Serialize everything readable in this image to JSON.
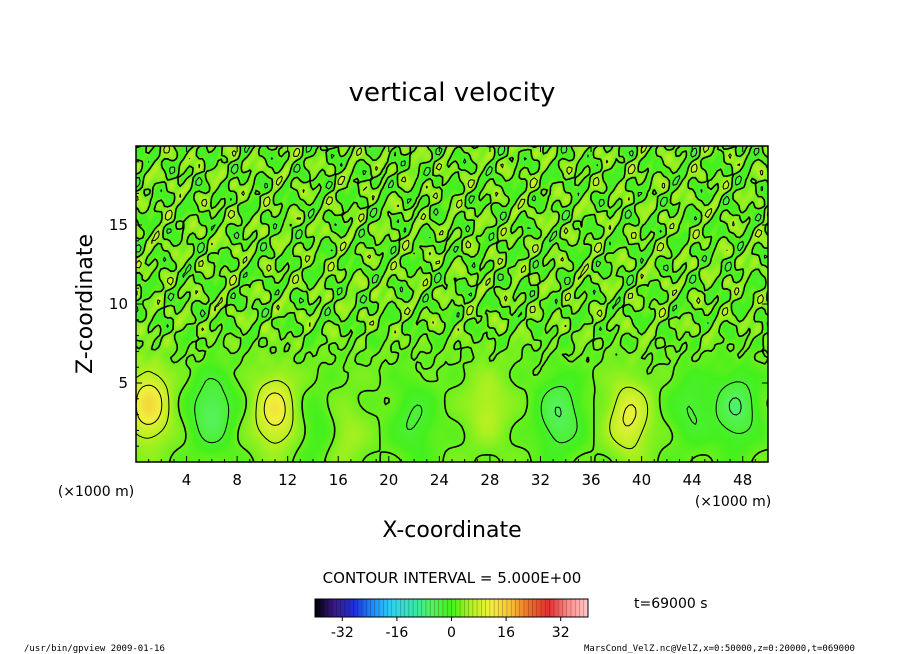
{
  "chart_data": {
    "type": "heatmap",
    "title": "vertical velocity",
    "xlabel": "X-coordinate",
    "ylabel": "Z-coordinate",
    "x_unit": "(×1000 m)",
    "y_unit": "(×1000 m)",
    "x_ticks": [
      4,
      8,
      12,
      16,
      20,
      24,
      28,
      32,
      36,
      40,
      44,
      48
    ],
    "y_ticks": [
      5,
      10,
      15
    ],
    "xlim": [
      0,
      50
    ],
    "ylim": [
      0,
      20
    ],
    "contour_interval": "CONTOUR INTERVAL = 5.000E+00",
    "colorbar": {
      "ticks": [
        -32,
        -16,
        0,
        16,
        32
      ],
      "range": [
        -40,
        40
      ],
      "colors": [
        "#000000",
        "#3a1a8a",
        "#1c2fd6",
        "#1e90ff",
        "#33d3f0",
        "#33e6b0",
        "#55f25a",
        "#44f01c",
        "#b4f020",
        "#f0f03c",
        "#f7c33b",
        "#f06a2a",
        "#e03030",
        "#ff8c8c",
        "#ffc8c8"
      ]
    },
    "features": [
      {
        "x": 1.0,
        "z": 3.6,
        "w": 3.2,
        "sign": "positive"
      },
      {
        "x": 6.0,
        "z": 3.2,
        "w": -2.2,
        "sign": "negative"
      },
      {
        "x": 11.0,
        "z": 3.2,
        "w": 2.8,
        "sign": "positive"
      },
      {
        "x": 14.5,
        "z": 2.0,
        "w": -0.8,
        "sign": "negative"
      },
      {
        "x": 16.5,
        "z": 1.6,
        "w": 0.9,
        "sign": "positive"
      },
      {
        "x": 22.0,
        "z": 2.6,
        "w": -1.2,
        "sign": "negative"
      },
      {
        "x": 27.8,
        "z": 3.5,
        "w": 1.2,
        "sign": "positive"
      },
      {
        "x": 33.5,
        "z": 3.0,
        "w": -2.2,
        "sign": "negative"
      },
      {
        "x": 39.0,
        "z": 2.8,
        "w": 2.4,
        "sign": "positive"
      },
      {
        "x": 44.0,
        "z": 3.4,
        "w": -1.2,
        "sign": "negative"
      },
      {
        "x": 47.5,
        "z": 3.4,
        "w": -2.2,
        "sign": "negative"
      }
    ],
    "time_label": "t=69000 s"
  },
  "footer": {
    "left": "/usr/bin/gpview  2009-01-16",
    "right": "MarsCond_VelZ.nc@VelZ,x=0:50000,z=0:20000,t=069000"
  },
  "colors": {
    "background": "#ffffff",
    "field": "#4cef44",
    "axis": "#000000"
  }
}
